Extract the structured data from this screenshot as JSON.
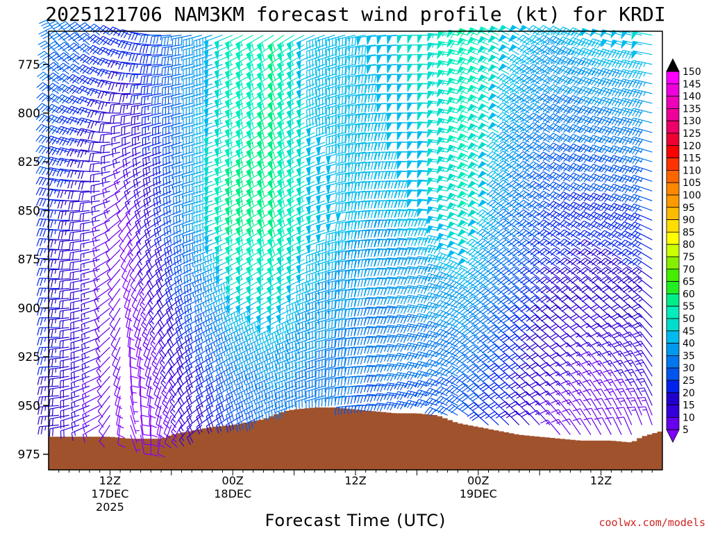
{
  "chart_data": {
    "type": "wind-barb-time-height",
    "title": "2025121706 NAM3KM forecast wind profile (kt) for KRDI",
    "xlabel": "Forecast Time (UTC)",
    "credit": "coolwx.com/models",
    "x_ticks": [
      {
        "hour": 6,
        "label1": "12Z",
        "label2": "17DEC",
        "label3": "2025"
      },
      {
        "hour": 18,
        "label1": "00Z",
        "label2": "18DEC",
        "label3": ""
      },
      {
        "hour": 30,
        "label1": "12Z",
        "label2": "",
        "label3": ""
      },
      {
        "hour": 42,
        "label1": "00Z",
        "label2": "19DEC",
        "label3": ""
      },
      {
        "hour": 54,
        "label1": "12Z",
        "label2": "",
        "label3": ""
      }
    ],
    "xlim_hours": [
      0,
      60
    ],
    "y_ticks": [
      775,
      800,
      825,
      850,
      875,
      900,
      925,
      950,
      975
    ],
    "ylim_hpa": [
      983,
      758
    ],
    "colorbar": {
      "levels": [
        5,
        10,
        15,
        20,
        25,
        30,
        35,
        40,
        45,
        50,
        55,
        60,
        65,
        70,
        75,
        80,
        85,
        90,
        95,
        100,
        105,
        110,
        115,
        120,
        125,
        130,
        135,
        140,
        145,
        150
      ],
      "colors": [
        "#8000ff",
        "#6600ee",
        "#3300dd",
        "#2200cc",
        "#0022ee",
        "#0055ee",
        "#0077ee",
        "#0099ee",
        "#00bbee",
        "#00ddcc",
        "#00eebb",
        "#00ee88",
        "#22ee22",
        "#44ee00",
        "#88ee00",
        "#ccff00",
        "#ffff00",
        "#ffdd00",
        "#ffbb00",
        "#ff9900",
        "#ff8800",
        "#ff6600",
        "#ff3300",
        "#ff0000",
        "#ee0033",
        "#ee0066",
        "#ee0099",
        "#ee00bb",
        "#ee00dd",
        "#ff00ff"
      ]
    },
    "terrain_hpa": [
      {
        "hour": 0,
        "p": 966
      },
      {
        "hour": 3,
        "p": 966
      },
      {
        "hour": 6,
        "p": 966
      },
      {
        "hour": 8,
        "p": 967
      },
      {
        "hour": 11,
        "p": 967
      },
      {
        "hour": 12,
        "p": 965
      },
      {
        "hour": 14,
        "p": 963
      },
      {
        "hour": 16,
        "p": 961
      },
      {
        "hour": 18,
        "p": 960
      },
      {
        "hour": 19,
        "p": 959
      },
      {
        "hour": 20,
        "p": 958
      },
      {
        "hour": 21,
        "p": 957
      },
      {
        "hour": 22,
        "p": 955
      },
      {
        "hour": 23,
        "p": 953
      },
      {
        "hour": 24,
        "p": 952
      },
      {
        "hour": 26,
        "p": 951
      },
      {
        "hour": 28,
        "p": 951
      },
      {
        "hour": 30,
        "p": 952
      },
      {
        "hour": 32,
        "p": 953
      },
      {
        "hour": 34,
        "p": 954
      },
      {
        "hour": 36,
        "p": 954
      },
      {
        "hour": 38,
        "p": 955
      },
      {
        "hour": 39,
        "p": 957
      },
      {
        "hour": 40,
        "p": 959
      },
      {
        "hour": 42,
        "p": 961
      },
      {
        "hour": 44,
        "p": 963
      },
      {
        "hour": 46,
        "p": 965
      },
      {
        "hour": 48,
        "p": 966
      },
      {
        "hour": 50,
        "p": 967
      },
      {
        "hour": 52,
        "p": 968
      },
      {
        "hour": 55,
        "p": 968
      },
      {
        "hour": 57,
        "p": 969
      },
      {
        "hour": 58,
        "p": 966
      },
      {
        "hour": 60,
        "p": 963
      }
    ],
    "barb_levels_hpa": [
      760,
      765,
      770,
      775,
      780,
      785,
      790,
      795,
      800,
      805,
      810,
      815,
      820,
      825,
      830,
      835,
      840,
      845,
      850,
      855,
      860,
      865,
      870,
      875,
      880,
      885,
      890,
      895,
      900,
      905,
      910,
      915,
      920,
      925,
      930,
      935,
      940,
      945,
      950,
      955,
      960,
      965,
      970
    ],
    "barb_hours": [
      1,
      2,
      3,
      4,
      5,
      6,
      7,
      8,
      9,
      10,
      11,
      12,
      13,
      14,
      15,
      16,
      17,
      18,
      19,
      20,
      21,
      22,
      23,
      24,
      25,
      26,
      27,
      28,
      29,
      30,
      31,
      32,
      33,
      34,
      35,
      36,
      37,
      38,
      39,
      40,
      41,
      42,
      43,
      44,
      45,
      46,
      47,
      48,
      49,
      50,
      51,
      52,
      53,
      54,
      55,
      56,
      57,
      58,
      59
    ],
    "wind_keyframes": [
      {
        "hour": 1,
        "top": {
          "dir": 320,
          "spd": 38
        },
        "mid": {
          "dir": 275,
          "spd": 28
        },
        "low": {
          "dir": 265,
          "spd": 24
        }
      },
      {
        "hour": 5,
        "top": {
          "dir": 310,
          "spd": 32
        },
        "mid": {
          "dir": 260,
          "spd": 18
        },
        "low": {
          "dir": 240,
          "spd": 14
        }
      },
      {
        "hour": 8,
        "top": {
          "dir": 295,
          "spd": 28
        },
        "mid": {
          "dir": 220,
          "spd": 9
        },
        "low": {
          "dir": 160,
          "spd": 7
        }
      },
      {
        "hour": 11,
        "top": {
          "dir": 270,
          "spd": 30
        },
        "mid": {
          "dir": 240,
          "spd": 22
        },
        "low": {
          "dir": 190,
          "spd": 9
        }
      },
      {
        "hour": 15,
        "top": {
          "dir": 255,
          "spd": 40
        },
        "mid": {
          "dir": 255,
          "spd": 42
        },
        "low": {
          "dir": 230,
          "spd": 18
        }
      },
      {
        "hour": 19,
        "top": {
          "dir": 245,
          "spd": 55
        },
        "mid": {
          "dir": 245,
          "spd": 62
        },
        "low": {
          "dir": 240,
          "spd": 28
        }
      },
      {
        "hour": 23,
        "top": {
          "dir": 235,
          "spd": 60
        },
        "mid": {
          "dir": 235,
          "spd": 62
        },
        "low": {
          "dir": 250,
          "spd": 35
        }
      },
      {
        "hour": 27,
        "top": {
          "dir": 250,
          "spd": 45
        },
        "mid": {
          "dir": 250,
          "spd": 50
        },
        "low": {
          "dir": 255,
          "spd": 35
        }
      },
      {
        "hour": 33,
        "top": {
          "dir": 265,
          "spd": 48
        },
        "mid": {
          "dir": 270,
          "spd": 45
        },
        "low": {
          "dir": 275,
          "spd": 32
        }
      },
      {
        "hour": 38,
        "top": {
          "dir": 270,
          "spd": 52
        },
        "mid": {
          "dir": 275,
          "spd": 48
        },
        "low": {
          "dir": 290,
          "spd": 32
        }
      },
      {
        "hour": 42,
        "top": {
          "dir": 290,
          "spd": 60
        },
        "mid": {
          "dir": 300,
          "spd": 55
        },
        "low": {
          "dir": 310,
          "spd": 30
        }
      },
      {
        "hour": 46,
        "top": {
          "dir": 300,
          "spd": 50
        },
        "mid": {
          "dir": 305,
          "spd": 40
        },
        "low": {
          "dir": 315,
          "spd": 24
        }
      },
      {
        "hour": 50,
        "top": {
          "dir": 300,
          "spd": 45
        },
        "mid": {
          "dir": 300,
          "spd": 30
        },
        "low": {
          "dir": 320,
          "spd": 14
        }
      },
      {
        "hour": 54,
        "top": {
          "dir": 290,
          "spd": 48
        },
        "mid": {
          "dir": 295,
          "spd": 28
        },
        "low": {
          "dir": 330,
          "spd": 10
        }
      },
      {
        "hour": 59,
        "top": {
          "dir": 280,
          "spd": 50
        },
        "mid": {
          "dir": 290,
          "spd": 30
        },
        "low": {
          "dir": 340,
          "spd": 14
        }
      }
    ]
  }
}
